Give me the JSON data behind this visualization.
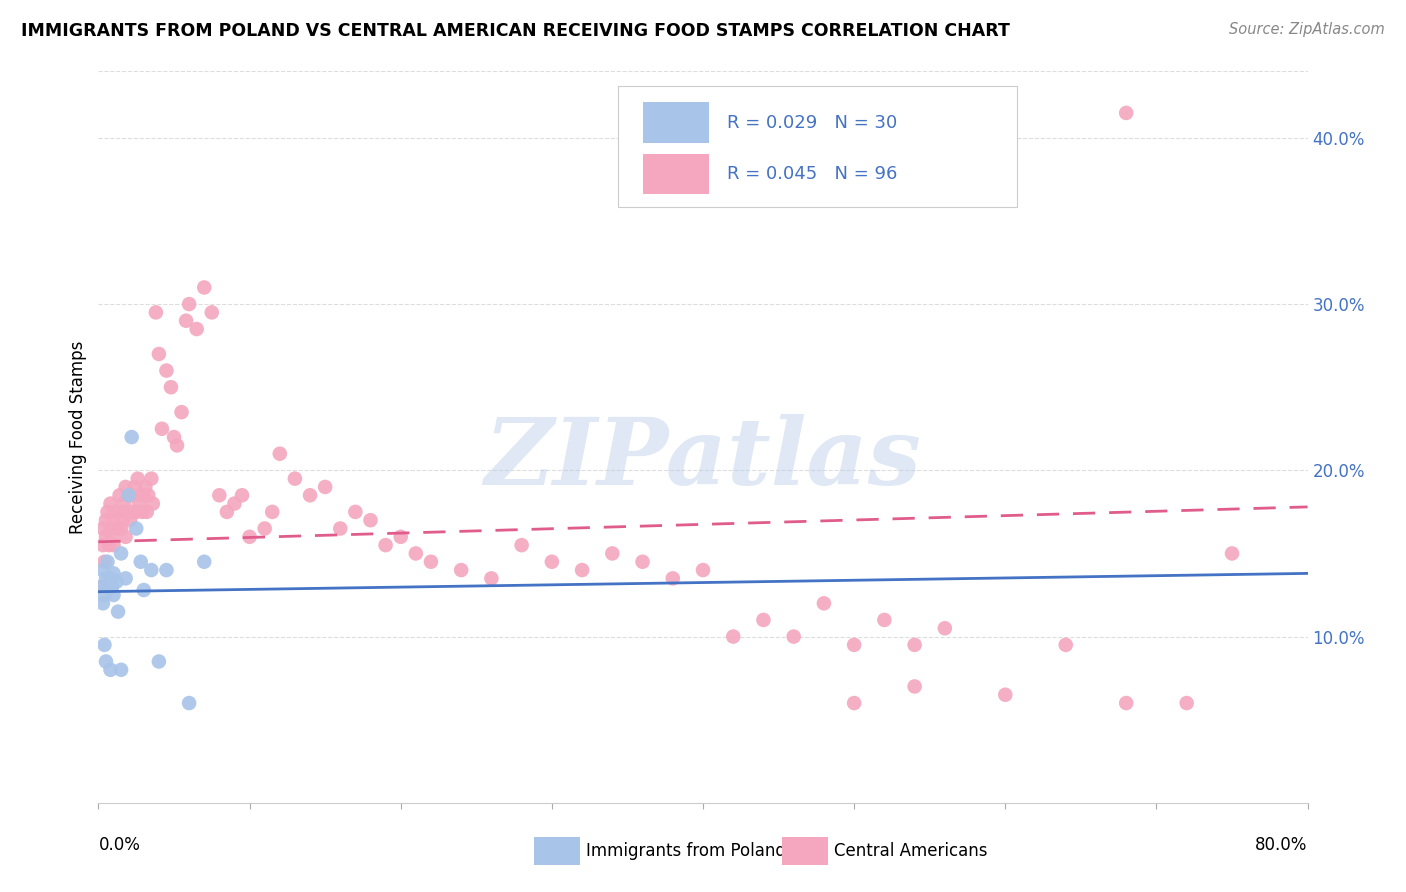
{
  "title": "IMMIGRANTS FROM POLAND VS CENTRAL AMERICAN RECEIVING FOOD STAMPS CORRELATION CHART",
  "source": "Source: ZipAtlas.com",
  "ylabel": "Receiving Food Stamps",
  "legend1_label": "R = 0.029   N = 30",
  "legend2_label": "R = 0.045   N = 96",
  "legend_bottom1": "Immigrants from Poland",
  "legend_bottom2": "Central Americans",
  "color_poland": "#a8c4e8",
  "color_central": "#f4a7bf",
  "color_text_blue": "#4472c4",
  "color_line_poland": "#4472c4",
  "color_line_central": "#e05c8a",
  "watermark": "ZIPatlas",
  "xmin": 0.0,
  "xmax": 0.8,
  "ymin": 0.0,
  "ymax": 0.44,
  "poland_x": [
    0.002,
    0.003,
    0.003,
    0.004,
    0.004,
    0.005,
    0.005,
    0.006,
    0.006,
    0.007,
    0.008,
    0.008,
    0.009,
    0.01,
    0.01,
    0.012,
    0.013,
    0.015,
    0.015,
    0.018,
    0.02,
    0.022,
    0.025,
    0.028,
    0.03,
    0.035,
    0.04,
    0.045,
    0.06,
    0.07
  ],
  "poland_y": [
    0.13,
    0.12,
    0.14,
    0.125,
    0.095,
    0.135,
    0.085,
    0.13,
    0.145,
    0.13,
    0.08,
    0.135,
    0.13,
    0.138,
    0.125,
    0.133,
    0.115,
    0.15,
    0.08,
    0.135,
    0.185,
    0.22,
    0.165,
    0.145,
    0.128,
    0.14,
    0.085,
    0.14,
    0.06,
    0.145
  ],
  "central_x": [
    0.002,
    0.003,
    0.003,
    0.004,
    0.005,
    0.005,
    0.006,
    0.007,
    0.008,
    0.008,
    0.009,
    0.01,
    0.01,
    0.011,
    0.012,
    0.013,
    0.014,
    0.015,
    0.015,
    0.016,
    0.017,
    0.018,
    0.018,
    0.019,
    0.02,
    0.021,
    0.022,
    0.023,
    0.024,
    0.025,
    0.026,
    0.027,
    0.028,
    0.029,
    0.03,
    0.031,
    0.032,
    0.033,
    0.035,
    0.036,
    0.038,
    0.04,
    0.042,
    0.045,
    0.048,
    0.05,
    0.052,
    0.055,
    0.058,
    0.06,
    0.065,
    0.07,
    0.075,
    0.08,
    0.085,
    0.09,
    0.095,
    0.1,
    0.11,
    0.115,
    0.12,
    0.13,
    0.14,
    0.15,
    0.16,
    0.17,
    0.18,
    0.19,
    0.2,
    0.21,
    0.22,
    0.24,
    0.26,
    0.28,
    0.3,
    0.32,
    0.34,
    0.36,
    0.38,
    0.4,
    0.42,
    0.44,
    0.46,
    0.48,
    0.5,
    0.52,
    0.54,
    0.56,
    0.6,
    0.64,
    0.68,
    0.72,
    0.75,
    0.5,
    0.54,
    0.68
  ],
  "central_y": [
    0.13,
    0.155,
    0.165,
    0.145,
    0.16,
    0.17,
    0.175,
    0.155,
    0.165,
    0.18,
    0.16,
    0.17,
    0.155,
    0.175,
    0.175,
    0.165,
    0.185,
    0.165,
    0.175,
    0.17,
    0.18,
    0.19,
    0.16,
    0.175,
    0.185,
    0.17,
    0.185,
    0.175,
    0.19,
    0.175,
    0.195,
    0.18,
    0.185,
    0.175,
    0.185,
    0.19,
    0.175,
    0.185,
    0.195,
    0.18,
    0.295,
    0.27,
    0.225,
    0.26,
    0.25,
    0.22,
    0.215,
    0.235,
    0.29,
    0.3,
    0.285,
    0.31,
    0.295,
    0.185,
    0.175,
    0.18,
    0.185,
    0.16,
    0.165,
    0.175,
    0.21,
    0.195,
    0.185,
    0.19,
    0.165,
    0.175,
    0.17,
    0.155,
    0.16,
    0.15,
    0.145,
    0.14,
    0.135,
    0.155,
    0.145,
    0.14,
    0.15,
    0.145,
    0.135,
    0.14,
    0.1,
    0.11,
    0.1,
    0.12,
    0.095,
    0.11,
    0.095,
    0.105,
    0.065,
    0.095,
    0.06,
    0.06,
    0.15,
    0.06,
    0.07,
    0.415
  ],
  "poland_line_x": [
    0.0,
    0.8
  ],
  "poland_line_y": [
    0.127,
    0.138
  ],
  "central_line_x": [
    0.0,
    0.8
  ],
  "central_line_y": [
    0.157,
    0.178
  ]
}
